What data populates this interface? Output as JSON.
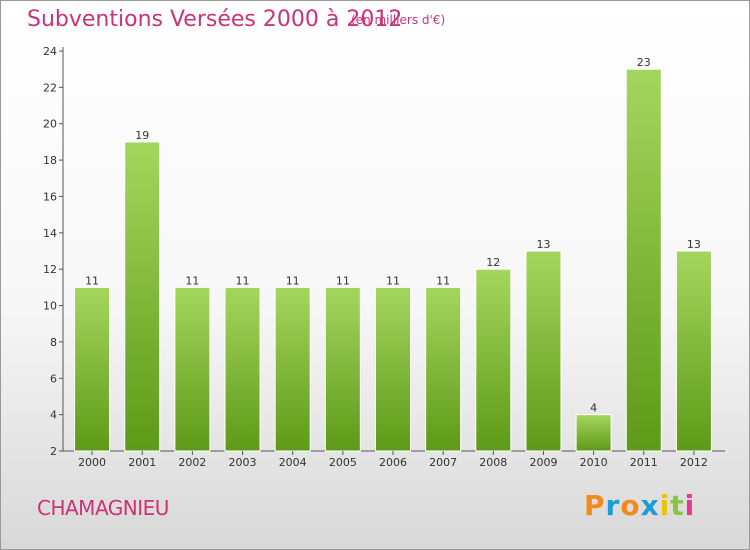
{
  "title": "Subventions Versées 2000 à 2012",
  "subtitle": "(en milliers d'€)",
  "commune": "CHAMAGNIEU",
  "brand": {
    "letters": [
      "P",
      "r",
      "o",
      "x",
      "i",
      "t",
      "i"
    ],
    "colors": [
      "#f28a1e",
      "#1f9bd7",
      "#f28a1e",
      "#1f9bd7",
      "#e8c500",
      "#8bc53f",
      "#e8378c"
    ]
  },
  "colors": {
    "bar_light": "#a4d65e",
    "bar_dark": "#5d9a17",
    "title": "#cc3377"
  },
  "chart_data": {
    "type": "bar",
    "title": "Subventions Versées 2000 à 2012",
    "categories": [
      "2000",
      "2001",
      "2002",
      "2003",
      "2004",
      "2005",
      "2006",
      "2007",
      "2008",
      "2009",
      "2010",
      "2011",
      "2012"
    ],
    "values": [
      11,
      19,
      11,
      11,
      11,
      11,
      11,
      11,
      12,
      13,
      4,
      23,
      13
    ],
    "ylim": [
      2,
      24
    ],
    "yticks": [
      2,
      4,
      6,
      8,
      10,
      12,
      14,
      16,
      18,
      20,
      22,
      24
    ],
    "grid": false,
    "legend": "none"
  }
}
